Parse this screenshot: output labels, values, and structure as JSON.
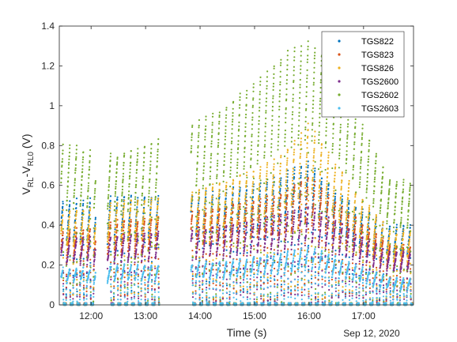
{
  "chart_data": {
    "type": "scatter",
    "xlabel": "Time (s)",
    "ylabel": {
      "main": "V",
      "sub1": "RL",
      "dash": "-V",
      "sub2": "RL0",
      "unit": " (V)"
    },
    "x_ticks": [
      "12:00",
      "13:00",
      "14:00",
      "15:00",
      "16:00",
      "17:00"
    ],
    "x_date_label": "Sep 12, 2020",
    "xlim": [
      "11:25",
      "17:55"
    ],
    "ylim": [
      0,
      1.4
    ],
    "y_ticks": [
      "0",
      "0.2",
      "0.4",
      "0.6",
      "0.8",
      "1",
      "1.2",
      "1.4"
    ],
    "grid": false,
    "legend_position": "top-right",
    "gaps": [
      [
        "12:05",
        "12:18"
      ],
      [
        "13:15",
        "13:50"
      ]
    ],
    "series": [
      {
        "name": "TGS822",
        "color": "#0072BD",
        "peaks": [
          [
            "11:35",
            0.52
          ],
          [
            "12:30",
            0.55
          ],
          [
            "13:25",
            0.55
          ],
          [
            "14:30",
            0.58
          ],
          [
            "15:30",
            0.65
          ],
          [
            "16:00",
            0.73
          ],
          [
            "16:30",
            0.56
          ],
          [
            "17:30",
            0.4
          ]
        ]
      },
      {
        "name": "TGS823",
        "color": "#D95319",
        "peaks": [
          [
            "11:35",
            0.37
          ],
          [
            "12:30",
            0.42
          ],
          [
            "13:25",
            0.45
          ],
          [
            "14:30",
            0.5
          ],
          [
            "15:30",
            0.56
          ],
          [
            "16:00",
            0.66
          ],
          [
            "16:30",
            0.52
          ],
          [
            "17:30",
            0.3
          ]
        ]
      },
      {
        "name": "TGS826",
        "color": "#EDB120",
        "peaks": [
          [
            "11:35",
            0.47
          ],
          [
            "12:30",
            0.52
          ],
          [
            "13:25",
            0.55
          ],
          [
            "14:30",
            0.62
          ],
          [
            "15:30",
            0.75
          ],
          [
            "16:00",
            0.92
          ],
          [
            "16:30",
            0.7
          ],
          [
            "17:30",
            0.37
          ]
        ]
      },
      {
        "name": "TGS2600",
        "color": "#7E2F8E",
        "peaks": [
          [
            "11:35",
            0.33
          ],
          [
            "12:30",
            0.35
          ],
          [
            "13:25",
            0.37
          ],
          [
            "14:30",
            0.4
          ],
          [
            "15:30",
            0.45
          ],
          [
            "16:00",
            0.5
          ],
          [
            "16:30",
            0.42
          ],
          [
            "17:30",
            0.27
          ]
        ]
      },
      {
        "name": "TGS2602",
        "color": "#77AC30",
        "peaks": [
          [
            "11:35",
            0.8
          ],
          [
            "12:30",
            0.75
          ],
          [
            "13:25",
            0.86
          ],
          [
            "14:30",
            1.0
          ],
          [
            "15:30",
            1.25
          ],
          [
            "16:00",
            1.35
          ],
          [
            "16:30",
            1.18
          ],
          [
            "17:30",
            0.62
          ]
        ]
      },
      {
        "name": "TGS2603",
        "color": "#4DBEEE",
        "peaks": [
          [
            "11:35",
            0.18
          ],
          [
            "12:30",
            0.2
          ],
          [
            "13:25",
            0.2
          ],
          [
            "14:30",
            0.22
          ],
          [
            "15:30",
            0.26
          ],
          [
            "16:00",
            0.3
          ],
          [
            "16:30",
            0.24
          ],
          [
            "17:30",
            0.13
          ]
        ]
      }
    ]
  }
}
